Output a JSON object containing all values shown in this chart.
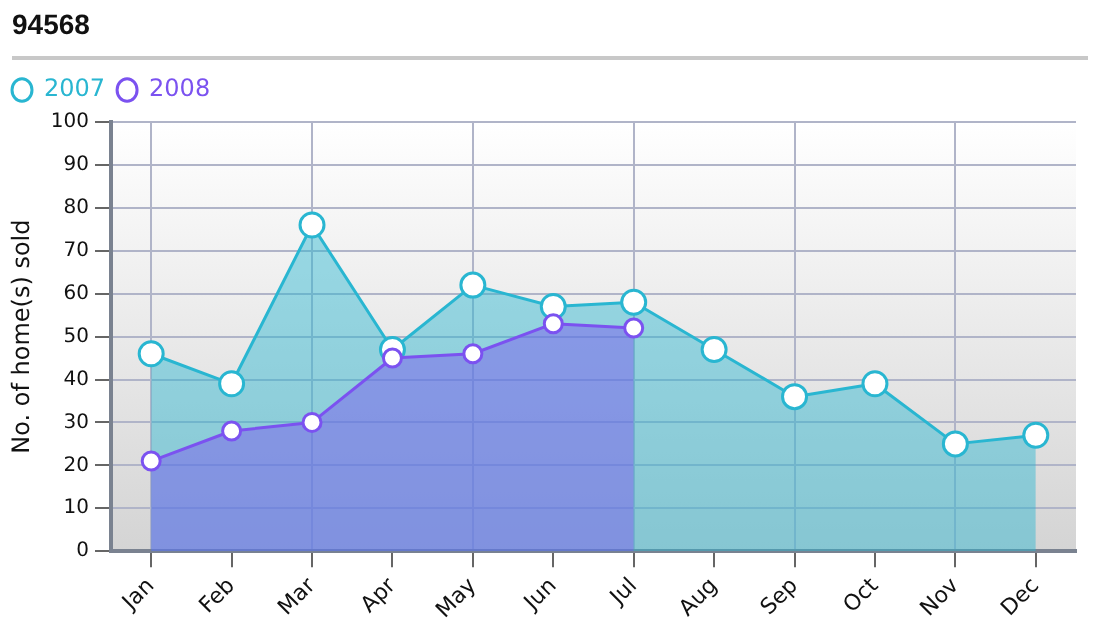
{
  "chart_data": {
    "type": "area",
    "title": "94568",
    "ylabel": "No. of home(s) sold",
    "categories": [
      "Jan",
      "Feb",
      "Mar",
      "Apr",
      "May",
      "Jun",
      "Jul",
      "Aug",
      "Sep",
      "Oct",
      "Nov",
      "Dec"
    ],
    "series": [
      {
        "name": "2007",
        "color": "#29b6d1",
        "values": [
          46,
          39,
          76,
          47,
          62,
          57,
          58,
          47,
          36,
          39,
          25,
          27
        ]
      },
      {
        "name": "2008",
        "color": "#7b52f0",
        "values": [
          21,
          28,
          30,
          45,
          46,
          53,
          52,
          null,
          null,
          null,
          null,
          null
        ]
      }
    ],
    "ylim": [
      0,
      100
    ],
    "yticks": [
      0,
      10,
      20,
      30,
      40,
      50,
      60,
      70,
      80,
      90,
      100
    ],
    "grid": true,
    "legend": "top left",
    "marker": "circle",
    "line_style": "solid"
  }
}
